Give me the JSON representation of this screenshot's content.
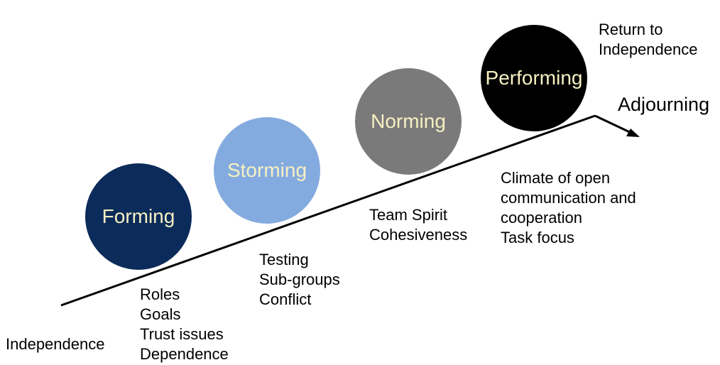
{
  "stages": [
    {
      "label": "Forming",
      "color": "#0b2b5a"
    },
    {
      "label": "Storming",
      "color": "#84abdf"
    },
    {
      "label": "Norming",
      "color": "#7a7a7a"
    },
    {
      "label": "Performing",
      "color": "#000000"
    }
  ],
  "adjourning": "Adjourning",
  "return_label": [
    "Return to",
    "Independence"
  ],
  "independence": "Independence",
  "forming_traits": [
    "Roles",
    "Goals",
    "Trust issues",
    "Dependence"
  ],
  "storming_traits": [
    "Testing",
    "Sub-groups",
    "Conflict"
  ],
  "norming_traits": [
    "Team Spirit",
    "Cohesiveness"
  ],
  "performing_traits": [
    "Climate of open",
    "communication and",
    "cooperation",
    "Task focus"
  ]
}
